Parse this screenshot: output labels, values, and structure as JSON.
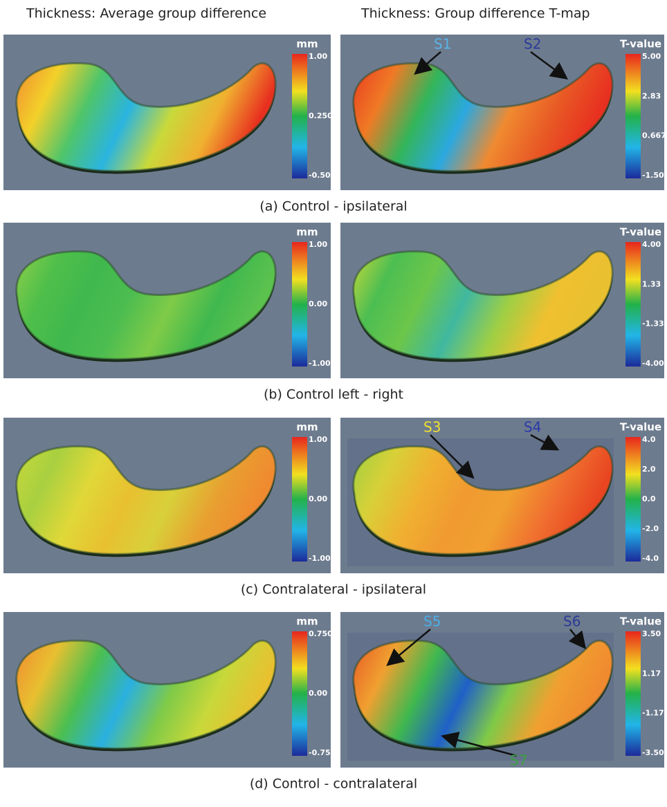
{
  "headers": [
    "Thickness: Average group difference",
    "Thickness: Group difference T-map"
  ],
  "rows": [
    {
      "caption": "(a) Control - ipsilateral",
      "left": {
        "unit": "mm",
        "ticks": [
          "1.00",
          "0.250",
          "-0.500"
        ]
      },
      "right": {
        "unit": "T-value",
        "ticks": [
          "5.00",
          "2.83",
          "0.667",
          "-1.50"
        ],
        "labels": [
          "S1",
          "S2"
        ]
      }
    },
    {
      "caption": "(b) Control left - right",
      "left": {
        "unit": "mm",
        "ticks": [
          "1.00",
          "0.00",
          "-1.00"
        ]
      },
      "right": {
        "unit": "T-value",
        "ticks": [
          "4.00",
          "1.33",
          "-1.33",
          "-4.00"
        ],
        "labels": []
      }
    },
    {
      "caption": "(c) Contralateral - ipsilateral",
      "left": {
        "unit": "mm",
        "ticks": [
          "1.00",
          "0.00",
          "-1.00"
        ]
      },
      "right": {
        "unit": "T-value",
        "ticks": [
          "4.0",
          "2.0",
          "0.0",
          "-2.0",
          "-4.0"
        ],
        "labels": [
          "S3",
          "S4"
        ]
      }
    },
    {
      "caption": "(d) Control - contralateral",
      "left": {
        "unit": "mm",
        "ticks": [
          "0.750",
          "0.00",
          "-0.750"
        ]
      },
      "right": {
        "unit": "T-value",
        "ticks": [
          "3.50",
          "1.17",
          "-1.17",
          "-3.50"
        ],
        "labels": [
          "S5",
          "S6",
          "S7"
        ]
      }
    }
  ]
}
